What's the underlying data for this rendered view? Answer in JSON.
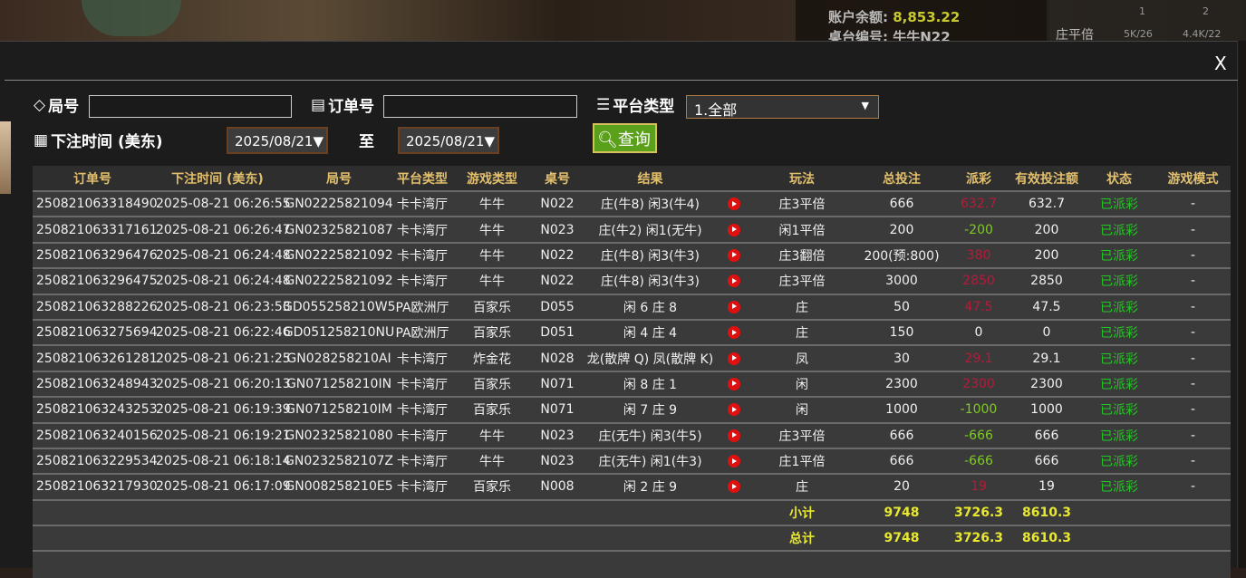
{
  "background": {
    "balance_label": "账户余额:",
    "balance": "8,853.22",
    "table_label": "桌台编号:",
    "table": "牛牛N22",
    "stats": {
      "cols": [
        "1",
        "2"
      ],
      "row_label": "庄平倍",
      "row_values": [
        "5K/26",
        "4.4K/22"
      ]
    }
  },
  "modal": {
    "close_label": "X",
    "filters": {
      "round_label": "局号",
      "round_value": "",
      "order_label": "订单号",
      "order_value": "",
      "platform_label": "平台类型",
      "platform_value": "1.全部",
      "time_label": "下注时间 (美东)",
      "date_from": "2025/08/21",
      "to_label": "至",
      "date_to": "2025/08/21",
      "query_label": "查询"
    },
    "columns": [
      "订单号",
      "下注时间 (美东)",
      "局号",
      "平台类型",
      "游戏类型",
      "桌号",
      "结果",
      "",
      "玩法",
      "总投注",
      "派彩",
      "有效投注额",
      "状态",
      "游戏模式"
    ],
    "rows": [
      {
        "order": "250821063318490",
        "time": "2025-08-21 06:26:55",
        "round": "GN02225821094",
        "platform": "卡卡湾厅",
        "game": "牛牛",
        "table": "N022",
        "result": "庄(牛8) 闲3(牛4)",
        "play": "庄3平倍",
        "bet": "666",
        "payout": "632.7",
        "payout_color": "red",
        "valid": "632.7",
        "status": "已派彩",
        "mode": "-"
      },
      {
        "order": "250821063317161",
        "time": "2025-08-21 06:26:47",
        "round": "GN02325821087",
        "platform": "卡卡湾厅",
        "game": "牛牛",
        "table": "N023",
        "result": "庄(牛2) 闲1(无牛)",
        "play": "闲1平倍",
        "bet": "200",
        "payout": "-200",
        "payout_color": "green",
        "valid": "200",
        "status": "已派彩",
        "mode": "-"
      },
      {
        "order": "250821063296476",
        "time": "2025-08-21 06:24:48",
        "round": "GN02225821092",
        "platform": "卡卡湾厅",
        "game": "牛牛",
        "table": "N022",
        "result": "庄(牛8) 闲3(牛3)",
        "play": "庄3翻倍",
        "bet": "200(预:800)",
        "payout": "380",
        "payout_color": "red",
        "valid": "200",
        "status": "已派彩",
        "mode": "-"
      },
      {
        "order": "250821063296475",
        "time": "2025-08-21 06:24:48",
        "round": "GN02225821092",
        "platform": "卡卡湾厅",
        "game": "牛牛",
        "table": "N022",
        "result": "庄(牛8) 闲3(牛3)",
        "play": "庄3平倍",
        "bet": "3000",
        "payout": "2850",
        "payout_color": "red",
        "valid": "2850",
        "status": "已派彩",
        "mode": "-"
      },
      {
        "order": "250821063288226",
        "time": "2025-08-21 06:23:53",
        "round": "GD055258210W5",
        "platform": "PA欧洲厅",
        "game": "百家乐",
        "table": "D055",
        "result": "闲 6 庄 8",
        "play": "庄",
        "bet": "50",
        "payout": "47.5",
        "payout_color": "red",
        "valid": "47.5",
        "status": "已派彩",
        "mode": "-"
      },
      {
        "order": "250821063275694",
        "time": "2025-08-21 06:22:46",
        "round": "GD051258210NU",
        "platform": "PA欧洲厅",
        "game": "百家乐",
        "table": "D051",
        "result": "闲 4 庄 4",
        "play": "庄",
        "bet": "150",
        "payout": "0",
        "payout_color": "white",
        "valid": "0",
        "status": "已派彩",
        "mode": "-"
      },
      {
        "order": "250821063261281",
        "time": "2025-08-21 06:21:25",
        "round": "GN028258210AI",
        "platform": "卡卡湾厅",
        "game": "炸金花",
        "table": "N028",
        "result": "龙(散牌 Q) 凤(散牌 K)",
        "play": "凤",
        "bet": "30",
        "payout": "29.1",
        "payout_color": "red",
        "valid": "29.1",
        "status": "已派彩",
        "mode": "-"
      },
      {
        "order": "250821063248943",
        "time": "2025-08-21 06:20:13",
        "round": "GN071258210IN",
        "platform": "卡卡湾厅",
        "game": "百家乐",
        "table": "N071",
        "result": "闲 8 庄 1",
        "play": "闲",
        "bet": "2300",
        "payout": "2300",
        "payout_color": "red",
        "valid": "2300",
        "status": "已派彩",
        "mode": "-"
      },
      {
        "order": "250821063243253",
        "time": "2025-08-21 06:19:39",
        "round": "GN071258210IM",
        "platform": "卡卡湾厅",
        "game": "百家乐",
        "table": "N071",
        "result": "闲 7 庄 9",
        "play": "闲",
        "bet": "1000",
        "payout": "-1000",
        "payout_color": "green",
        "valid": "1000",
        "status": "已派彩",
        "mode": "-"
      },
      {
        "order": "250821063240156",
        "time": "2025-08-21 06:19:21",
        "round": "GN02325821080",
        "platform": "卡卡湾厅",
        "game": "牛牛",
        "table": "N023",
        "result": "庄(无牛) 闲3(牛5)",
        "play": "庄3平倍",
        "bet": "666",
        "payout": "-666",
        "payout_color": "green",
        "valid": "666",
        "status": "已派彩",
        "mode": "-"
      },
      {
        "order": "250821063229534",
        "time": "2025-08-21 06:18:14",
        "round": "GN0232582107Z",
        "platform": "卡卡湾厅",
        "game": "牛牛",
        "table": "N023",
        "result": "庄(无牛) 闲1(牛3)",
        "play": "庄1平倍",
        "bet": "666",
        "payout": "-666",
        "payout_color": "green",
        "valid": "666",
        "status": "已派彩",
        "mode": "-"
      },
      {
        "order": "250821063217930",
        "time": "2025-08-21 06:17:09",
        "round": "GN008258210E5",
        "platform": "卡卡湾厅",
        "game": "百家乐",
        "table": "N008",
        "result": "闲 2 庄 9",
        "play": "庄",
        "bet": "20",
        "payout": "19",
        "payout_color": "red",
        "valid": "19",
        "status": "已派彩",
        "mode": "-"
      }
    ],
    "subtotal": {
      "label": "小计",
      "bet": "9748",
      "payout": "3726.3",
      "valid": "8610.3"
    },
    "total": {
      "label": "总计",
      "bet": "9748",
      "payout": "3726.3",
      "valid": "8610.3"
    }
  }
}
